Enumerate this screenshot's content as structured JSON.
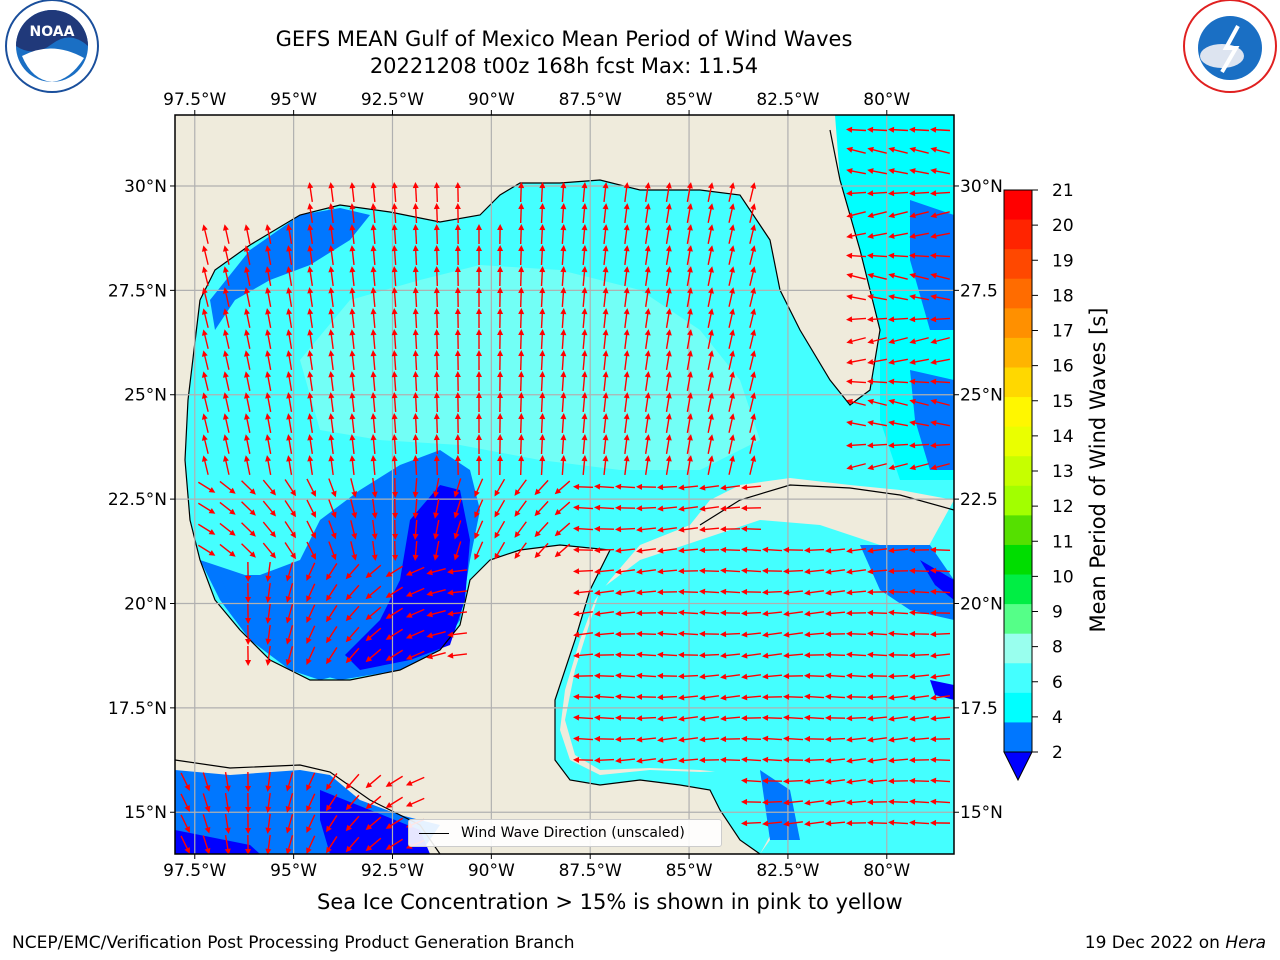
{
  "title": {
    "line1": "GEFS MEAN Gulf of Mexico Mean Period of Wind Waves",
    "line2": "20221208 t00z 168h fcst   Max: 11.54"
  },
  "logos": {
    "left": "noaa-logo",
    "right": "nws-logo"
  },
  "map": {
    "lon_range": [
      -98,
      -78.3
    ],
    "lat_range": [
      14,
      31.7
    ],
    "lon_ticks": [
      "97.5°W",
      "95°W",
      "92.5°W",
      "90°W",
      "87.5°W",
      "85°W",
      "82.5°W",
      "80°W"
    ],
    "lon_tick_values": [
      -97.5,
      -95,
      -92.5,
      -90,
      -87.5,
      -85,
      -82.5,
      -80
    ],
    "lat_ticks_left": [
      "30°N",
      "27.5°N",
      "25°N",
      "22.5°N",
      "20°N",
      "17.5°N",
      "15°N"
    ],
    "lat_ticks_right": [
      "30°N",
      "27.5",
      "25°N",
      "22.5",
      "20°N",
      "17.5",
      "15°N"
    ],
    "lat_tick_values": [
      30,
      27.5,
      25,
      22.5,
      20,
      17.5,
      15
    ],
    "land_color": "#efebdc",
    "gridlines": true
  },
  "legend": {
    "label": "Wind Wave Direction (unscaled)",
    "line_color": "#000000"
  },
  "colorbar": {
    "label": "Mean Period of Wind Waves [s]",
    "ticks": [
      "21",
      "20",
      "19",
      "18",
      "17",
      "16",
      "15",
      "14",
      "13",
      "12",
      "11",
      "10",
      "9",
      "8",
      "6",
      "4",
      "2"
    ],
    "colors": [
      "#ff0000",
      "#ff2400",
      "#ff4800",
      "#ff6c00",
      "#ff9000",
      "#ffb400",
      "#ffd800",
      "#fff700",
      "#eaff00",
      "#c6ff00",
      "#a2ff00",
      "#55e000",
      "#00dd00",
      "#00ee44",
      "#55ff88",
      "#99ffee",
      "#44ffff",
      "#00ffff",
      "#0077ff"
    ],
    "under_color": "#0000ff"
  },
  "notes": {
    "sea_ice": "Sea Ice Concentration > 15% is shown in pink to yellow",
    "credit": "NCEP/EMC/Verification Post Processing Product Generation Branch",
    "date": "19 Dec 2022 on ",
    "host": "Hera"
  },
  "field_colors": {
    "period_4_6": "#00ffff",
    "period_6_8": "#44ffff",
    "period_8_9": "#99ffee",
    "period_2_4": "#0077ff",
    "period_lt2": "#0000ff",
    "arrows": "#ff0000"
  }
}
